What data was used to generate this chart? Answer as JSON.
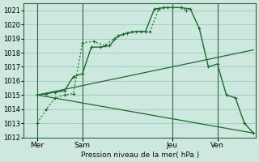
{
  "bg_color": "#cce8df",
  "grid_color": "#99ccbb",
  "line_color": "#1a6b2a",
  "vline_color": "#336644",
  "ylabel": "Pression niveau de la mer( hPa )",
  "ylim": [
    1012,
    1021.5
  ],
  "yticks": [
    1012,
    1013,
    1014,
    1015,
    1016,
    1017,
    1018,
    1019,
    1020,
    1021
  ],
  "xlim": [
    -0.1,
    10.2
  ],
  "xtick_labels": [
    "Mer",
    "Sam",
    "Jeu",
    "Ven"
  ],
  "xtick_positions": [
    0.5,
    2.5,
    6.5,
    8.5
  ],
  "vlines": [
    0.5,
    2.5,
    6.5,
    8.5
  ],
  "series_dotted": {
    "x": [
      0.5,
      0.9,
      1.3,
      1.7,
      2.1,
      2.5,
      3.0,
      3.5,
      3.9,
      4.3,
      4.7,
      5.1,
      5.5,
      5.9,
      6.3,
      6.5,
      6.9,
      7.1
    ],
    "y": [
      1013.0,
      1014.0,
      1014.8,
      1015.0,
      1015.1,
      1018.7,
      1018.8,
      1018.5,
      1019.0,
      1019.3,
      1019.5,
      1019.5,
      1019.5,
      1021.1,
      1021.2,
      1021.2,
      1021.2,
      1021.0
    ]
  },
  "series_solid": {
    "x": [
      0.5,
      0.9,
      1.3,
      1.7,
      2.1,
      2.5,
      2.9,
      3.3,
      3.7,
      4.1,
      4.5,
      4.9,
      5.3,
      5.7,
      6.1,
      6.5,
      6.9,
      7.3,
      7.7,
      8.1,
      8.5,
      8.9,
      9.3,
      9.7,
      10.1
    ],
    "y": [
      1015.0,
      1015.1,
      1015.2,
      1015.3,
      1016.3,
      1016.5,
      1018.4,
      1018.4,
      1018.5,
      1019.2,
      1019.4,
      1019.5,
      1019.5,
      1021.1,
      1021.2,
      1021.2,
      1021.2,
      1021.1,
      1019.7,
      1017.0,
      1017.2,
      1015.0,
      1014.8,
      1013.0,
      1012.3
    ]
  },
  "line_up": {
    "x": [
      0.5,
      10.1
    ],
    "y": [
      1015.0,
      1018.2
    ]
  },
  "line_down": {
    "x": [
      0.5,
      10.1
    ],
    "y": [
      1015.0,
      1012.3
    ]
  }
}
